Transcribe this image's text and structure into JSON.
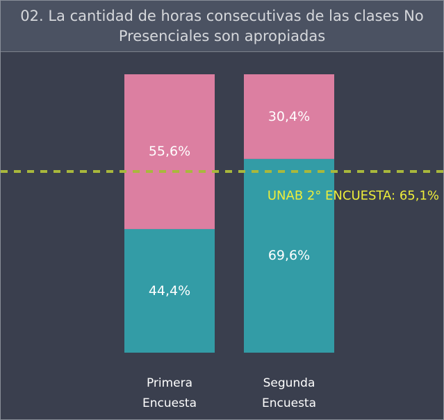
{
  "chart_data": {
    "type": "stacked_bar",
    "title": "02. La cantidad de horas consecutivas de las clases No Presenciales son apropiadas",
    "categories": [
      "Primera Encuesta",
      "Segunda Encuesta"
    ],
    "series": [
      {
        "color": "#339ca6",
        "values": [
          44.4,
          69.6
        ],
        "value_labels": [
          "44,4%",
          "69,6%"
        ]
      },
      {
        "color": "#dc7fa1",
        "values": [
          55.6,
          30.4
        ],
        "value_labels": [
          "55,6%",
          "30,4%"
        ]
      }
    ],
    "ylim": [
      0,
      100
    ],
    "reference_line": {
      "value": 65.1,
      "label": "UNAB 2° ENCUESTA: 65,1%",
      "color": "#a9b83c",
      "label_color": "#eeee3a"
    }
  }
}
